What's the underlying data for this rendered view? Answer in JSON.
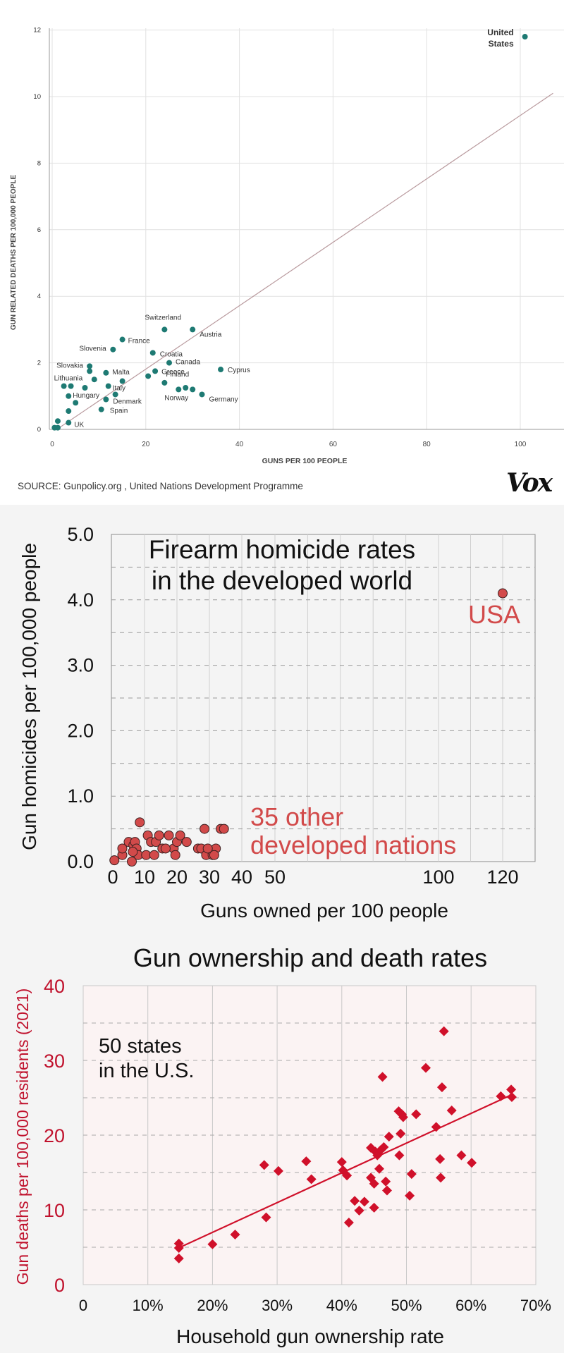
{
  "chart_data": [
    {
      "type": "scatter",
      "title": "",
      "xlabel": "GUNS PER 100 PEOPLE",
      "ylabel": "GUN RELATED DEATHS PER 100,000 PEOPLE",
      "xlim": [
        0,
        110
      ],
      "ylim": [
        0,
        12
      ],
      "x_ticks": [
        "0",
        "20",
        "40",
        "60",
        "80",
        "100"
      ],
      "y_ticks": [
        "0",
        "2",
        "4",
        "6",
        "8",
        "10",
        "12"
      ],
      "grid": true,
      "trendline": [
        [
          1,
          0
        ],
        [
          107,
          10.1
        ]
      ],
      "point_color": "#1e7a73",
      "points": [
        {
          "x": 101,
          "y": 11.8,
          "label": "United States"
        },
        {
          "x": 24,
          "y": 3.0,
          "label": "Switzerland"
        },
        {
          "x": 30,
          "y": 3.0,
          "label": "Austria"
        },
        {
          "x": 15,
          "y": 2.7,
          "label": "France"
        },
        {
          "x": 13,
          "y": 2.4,
          "label": "Slovenia"
        },
        {
          "x": 21.5,
          "y": 2.3,
          "label": "Croatia"
        },
        {
          "x": 25,
          "y": 2.0,
          "label": "Canada"
        },
        {
          "x": 8,
          "y": 1.9,
          "label": "Slovakia"
        },
        {
          "x": 8,
          "y": 1.75,
          "label": ""
        },
        {
          "x": 11.5,
          "y": 1.7,
          "label": "Malta"
        },
        {
          "x": 22,
          "y": 1.75,
          "label": "Greece"
        },
        {
          "x": 36,
          "y": 1.8,
          "label": "Cyprus"
        },
        {
          "x": 20.5,
          "y": 1.6,
          "label": ""
        },
        {
          "x": 24,
          "y": 1.4,
          "label": "Finland"
        },
        {
          "x": 15,
          "y": 1.45,
          "label": ""
        },
        {
          "x": 9,
          "y": 1.5,
          "label": ""
        },
        {
          "x": 2.5,
          "y": 1.3,
          "label": "Lithuania"
        },
        {
          "x": 4,
          "y": 1.3,
          "label": ""
        },
        {
          "x": 7,
          "y": 1.25,
          "label": ""
        },
        {
          "x": 12,
          "y": 1.3,
          "label": "Italy"
        },
        {
          "x": 27,
          "y": 1.2,
          "label": "Norway"
        },
        {
          "x": 28.5,
          "y": 1.25,
          "label": ""
        },
        {
          "x": 30,
          "y": 1.2,
          "label": ""
        },
        {
          "x": 32,
          "y": 1.05,
          "label": "Germany"
        },
        {
          "x": 3.5,
          "y": 1.0,
          "label": "Hungary"
        },
        {
          "x": 13.5,
          "y": 1.05,
          "label": ""
        },
        {
          "x": 11.5,
          "y": 0.9,
          "label": "Denmark"
        },
        {
          "x": 5,
          "y": 0.8,
          "label": ""
        },
        {
          "x": 10.5,
          "y": 0.6,
          "label": "Spain"
        },
        {
          "x": 3.5,
          "y": 0.55,
          "label": ""
        },
        {
          "x": 3.5,
          "y": 0.2,
          "label": "UK"
        },
        {
          "x": 1.2,
          "y": 0.25,
          "label": ""
        },
        {
          "x": 0.5,
          "y": 0.05,
          "label": ""
        },
        {
          "x": 1.2,
          "y": 0.05,
          "label": ""
        }
      ],
      "source": "SOURCE: Gunpolicy.org , United Nations Development Programme",
      "brand": "Vox"
    },
    {
      "type": "scatter",
      "title": "Firearm homicide rates\nin the developed world",
      "xlabel": "Guns owned per 100 people",
      "ylabel": "Gun homicides per 100,000 people",
      "xlim": [
        0,
        130
      ],
      "ylim": [
        0,
        5
      ],
      "x_ticks": [
        "0",
        "10",
        "20",
        "30",
        "40",
        "50",
        "100",
        "120"
      ],
      "y_ticks": [
        "0.0",
        "1.0",
        "2.0",
        "3.0",
        "4.0",
        "5.0"
      ],
      "grid": true,
      "point_color": "#d24a4a",
      "annotations": [
        "USA",
        "35 other\ndeveloped nations"
      ],
      "points": [
        {
          "x": 120,
          "y": 4.1,
          "label": "USA"
        },
        {
          "x": 0.5,
          "y": 0.02
        },
        {
          "x": 3,
          "y": 0.1
        },
        {
          "x": 3,
          "y": 0.2
        },
        {
          "x": 5,
          "y": 0.3
        },
        {
          "x": 6,
          "y": 0.0
        },
        {
          "x": 6.5,
          "y": 0.25
        },
        {
          "x": 7,
          "y": 0.3
        },
        {
          "x": 7.5,
          "y": 0.2
        },
        {
          "x": 8,
          "y": 0.1
        },
        {
          "x": 8.5,
          "y": 0.6
        },
        {
          "x": 10.5,
          "y": 0.1
        },
        {
          "x": 11,
          "y": 0.4
        },
        {
          "x": 12,
          "y": 0.3
        },
        {
          "x": 13,
          "y": 0.1
        },
        {
          "x": 13.5,
          "y": 0.3
        },
        {
          "x": 14.5,
          "y": 0.4
        },
        {
          "x": 15.5,
          "y": 0.2
        },
        {
          "x": 17.5,
          "y": 0.4
        },
        {
          "x": 19,
          "y": 0.2
        },
        {
          "x": 19.5,
          "y": 0.1
        },
        {
          "x": 20,
          "y": 0.3
        },
        {
          "x": 21,
          "y": 0.4
        },
        {
          "x": 23,
          "y": 0.3
        },
        {
          "x": 26.5,
          "y": 0.2
        },
        {
          "x": 27.5,
          "y": 0.2
        },
        {
          "x": 28.5,
          "y": 0.5
        },
        {
          "x": 29,
          "y": 0.1
        },
        {
          "x": 31,
          "y": 0.1
        },
        {
          "x": 32,
          "y": 0.2
        },
        {
          "x": 33.5,
          "y": 0.5
        },
        {
          "x": 34.5,
          "y": 0.5
        },
        {
          "x": 31.5,
          "y": 0.1
        },
        {
          "x": 29.5,
          "y": 0.2
        },
        {
          "x": 6.3,
          "y": 0.15
        },
        {
          "x": 16.5,
          "y": 0.2
        }
      ]
    },
    {
      "type": "scatter",
      "title": "Gun ownership and death rates",
      "xlabel": "Household gun ownership rate",
      "ylabel": "Gun deaths per 100,000 residents (2021)",
      "xlim": [
        0,
        70
      ],
      "ylim": [
        0,
        40
      ],
      "x_ticks": [
        "0",
        "10%",
        "20%",
        "30%",
        "40%",
        "50%",
        "60%",
        "70%"
      ],
      "y_ticks": [
        "0",
        "10",
        "20",
        "30",
        "40"
      ],
      "grid": true,
      "trendline": [
        [
          14.5,
          4.8
        ],
        [
          66.5,
          25.5
        ]
      ],
      "point_color": "#d0102a",
      "annotations": [
        "50 states\nin the U.S."
      ],
      "points": [
        {
          "x": 14.8,
          "y": 3.5
        },
        {
          "x": 14.8,
          "y": 5.5
        },
        {
          "x": 14.8,
          "y": 4.9
        },
        {
          "x": 20,
          "y": 5.4
        },
        {
          "x": 23.5,
          "y": 6.7
        },
        {
          "x": 28,
          "y": 16.0
        },
        {
          "x": 28.3,
          "y": 9.0
        },
        {
          "x": 30.2,
          "y": 15.2
        },
        {
          "x": 34.5,
          "y": 16.5
        },
        {
          "x": 35.3,
          "y": 14.1
        },
        {
          "x": 40,
          "y": 16.4
        },
        {
          "x": 40.2,
          "y": 15.3
        },
        {
          "x": 40.8,
          "y": 14.6
        },
        {
          "x": 41.1,
          "y": 8.3
        },
        {
          "x": 42,
          "y": 11.2
        },
        {
          "x": 42.7,
          "y": 9.9
        },
        {
          "x": 43.5,
          "y": 11.1
        },
        {
          "x": 44.5,
          "y": 18.3
        },
        {
          "x": 44.5,
          "y": 14.3
        },
        {
          "x": 45,
          "y": 13.5
        },
        {
          "x": 45,
          "y": 10.3
        },
        {
          "x": 45.2,
          "y": 17.8
        },
        {
          "x": 45.5,
          "y": 17.3
        },
        {
          "x": 45.8,
          "y": 15.5
        },
        {
          "x": 46,
          "y": 18.0
        },
        {
          "x": 46.3,
          "y": 27.8
        },
        {
          "x": 46.5,
          "y": 18.4
        },
        {
          "x": 46.8,
          "y": 13.8
        },
        {
          "x": 47,
          "y": 12.6
        },
        {
          "x": 47.3,
          "y": 19.8
        },
        {
          "x": 48.8,
          "y": 23.2
        },
        {
          "x": 48.9,
          "y": 17.3
        },
        {
          "x": 49.1,
          "y": 20.2
        },
        {
          "x": 49.3,
          "y": 22.8
        },
        {
          "x": 49.5,
          "y": 22.4
        },
        {
          "x": 50.5,
          "y": 11.9
        },
        {
          "x": 50.8,
          "y": 14.8
        },
        {
          "x": 51.5,
          "y": 22.8
        },
        {
          "x": 53,
          "y": 29.0
        },
        {
          "x": 54.6,
          "y": 21.1
        },
        {
          "x": 55.2,
          "y": 16.8
        },
        {
          "x": 55.3,
          "y": 14.3
        },
        {
          "x": 55.5,
          "y": 26.4
        },
        {
          "x": 55.8,
          "y": 33.9
        },
        {
          "x": 57,
          "y": 23.3
        },
        {
          "x": 58.5,
          "y": 17.3
        },
        {
          "x": 60.1,
          "y": 16.3
        },
        {
          "x": 64.6,
          "y": 25.2
        },
        {
          "x": 66.2,
          "y": 26.1
        },
        {
          "x": 66.3,
          "y": 25.1
        }
      ]
    }
  ]
}
